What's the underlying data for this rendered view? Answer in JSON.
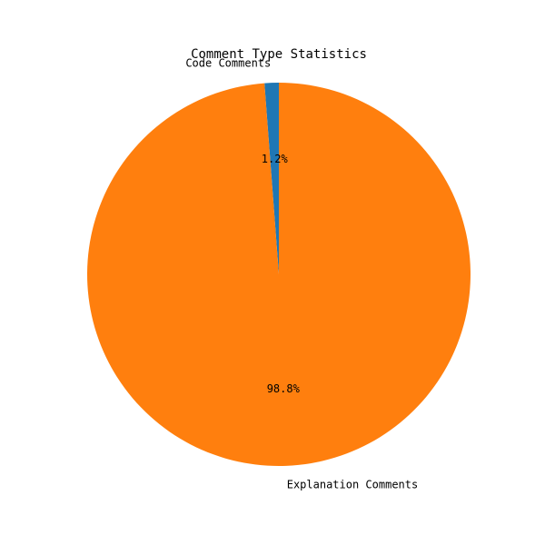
{
  "chart_data": {
    "type": "pie",
    "title": "Comment Type Statistics",
    "slices": [
      {
        "label": "Code Comments",
        "value": 1.2,
        "percent_label": "1.2%",
        "color": "#1f77b4"
      },
      {
        "label": "Explanation Comments",
        "value": 98.8,
        "percent_label": "98.8%",
        "color": "#ff7f0e"
      }
    ],
    "start_angle_deg": 90,
    "direction": "counterclockwise",
    "legend": "none"
  }
}
